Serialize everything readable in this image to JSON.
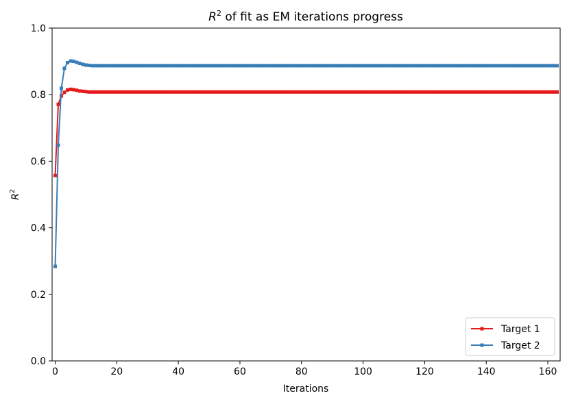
{
  "chart_data": {
    "type": "line",
    "title": {
      "italic": "R",
      "sup": "2",
      "rest": " of fit as EM iterations progress"
    },
    "xlabel": "Iterations",
    "ylabel": {
      "italic": "R",
      "sup": "2"
    },
    "xlim": [
      -1,
      164
    ],
    "ylim": [
      0.0,
      1.0
    ],
    "xticks": [
      0,
      20,
      40,
      60,
      80,
      100,
      120,
      140,
      160
    ],
    "xtick_labels": [
      "0",
      "20",
      "40",
      "60",
      "80",
      "100",
      "120",
      "140",
      "160"
    ],
    "yticks": [
      0.0,
      0.2,
      0.4,
      0.6,
      0.8,
      1.0
    ],
    "ytick_labels": [
      "0.0",
      "0.2",
      "0.4",
      "0.6",
      "0.8",
      "1.0"
    ],
    "grid": false,
    "legend_position": "lower-right",
    "marker": "square",
    "n_iterations": 164,
    "series": [
      {
        "name": "Target 1",
        "color": "#e41a1c",
        "values": [
          0.557,
          0.771,
          0.796,
          0.807,
          0.814,
          0.816,
          0.815,
          0.813,
          0.811,
          0.81,
          0.809,
          0.808,
          0.808,
          0.808
        ],
        "steady_value": 0.808
      },
      {
        "name": "Target 2",
        "color": "#377eb8",
        "values": [
          0.284,
          0.648,
          0.819,
          0.879,
          0.896,
          0.901,
          0.9,
          0.897,
          0.894,
          0.891,
          0.889,
          0.888,
          0.887,
          0.887
        ],
        "steady_value": 0.887
      }
    ]
  }
}
